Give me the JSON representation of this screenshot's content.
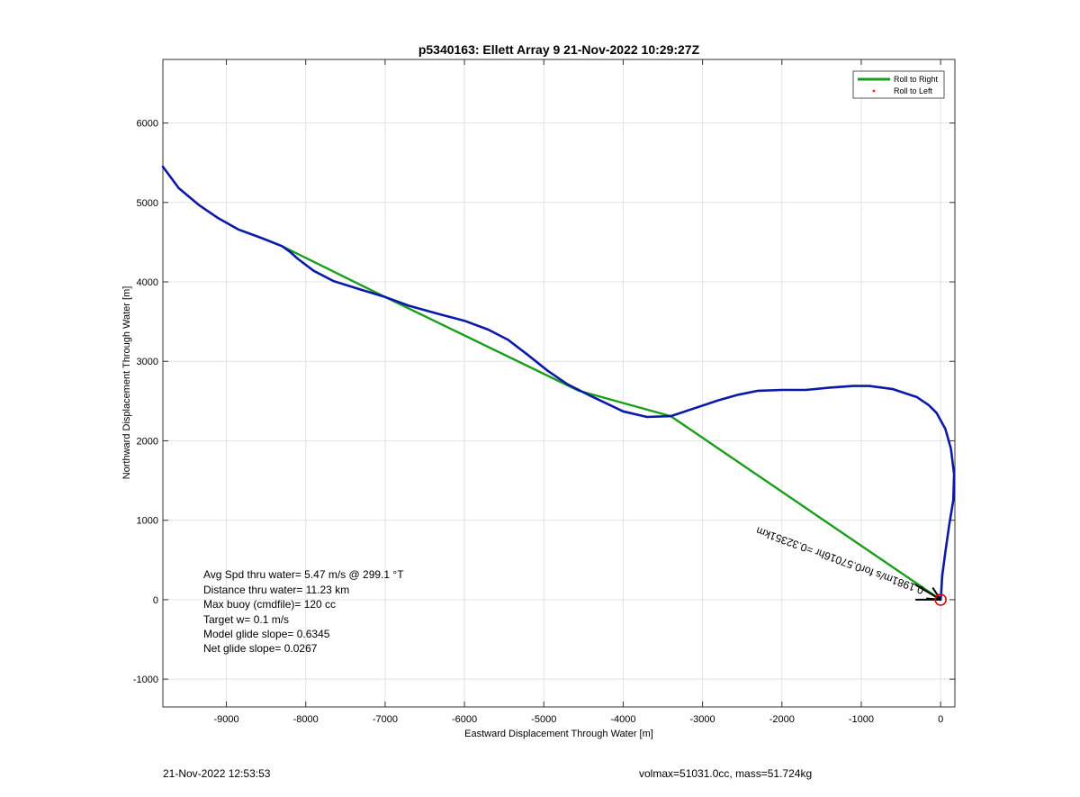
{
  "chart_data": {
    "type": "line",
    "title": "p5340163: Ellett Array 9 21-Nov-2022 10:29:27Z",
    "xlabel": "Eastward Displacement Through Water [m]",
    "ylabel": "Northward Displacement Through Water [m]",
    "xlim": [
      -9800,
      180
    ],
    "ylim": [
      -1350,
      6800
    ],
    "xticks": [
      -9000,
      -8000,
      -7000,
      -6000,
      -5000,
      -4000,
      -3000,
      -2000,
      -1000,
      0
    ],
    "yticks": [
      -1000,
      0,
      1000,
      2000,
      3000,
      4000,
      5000,
      6000
    ],
    "grid": true,
    "legend": {
      "position": "top-right",
      "entries": [
        {
          "label": "Roll to Right",
          "color": "#1a9e1a",
          "style": "line"
        },
        {
          "label": "Roll to Left",
          "color": "#ff2020",
          "style": "dot"
        }
      ]
    },
    "series": [
      {
        "color": "#0a1aa8",
        "points": [
          [
            -9800,
            5450
          ],
          [
            -9600,
            5180
          ],
          [
            -9350,
            4970
          ],
          [
            -9100,
            4800
          ],
          [
            -8850,
            4660
          ],
          [
            -8550,
            4550
          ],
          [
            -8300,
            4450
          ],
          [
            -8200,
            4380
          ],
          [
            -8100,
            4290
          ],
          [
            -7900,
            4140
          ],
          [
            -7650,
            4010
          ],
          [
            -7300,
            3900
          ],
          [
            -7000,
            3810
          ],
          [
            -6700,
            3700
          ],
          [
            -6300,
            3590
          ],
          [
            -6000,
            3510
          ],
          [
            -5700,
            3400
          ],
          [
            -5450,
            3270
          ],
          [
            -5200,
            3080
          ],
          [
            -4950,
            2880
          ],
          [
            -4700,
            2710
          ],
          [
            -4400,
            2560
          ],
          [
            -4000,
            2370
          ],
          [
            -3700,
            2300
          ],
          [
            -3400,
            2310
          ],
          [
            -3100,
            2410
          ],
          [
            -2800,
            2510
          ],
          [
            -2550,
            2580
          ],
          [
            -2300,
            2630
          ],
          [
            -2000,
            2640
          ],
          [
            -1700,
            2640
          ],
          [
            -1400,
            2670
          ],
          [
            -1100,
            2690
          ],
          [
            -900,
            2690
          ],
          [
            -600,
            2650
          ],
          [
            -300,
            2550
          ],
          [
            -150,
            2450
          ],
          [
            -50,
            2350
          ],
          [
            60,
            2150
          ],
          [
            130,
            1900
          ],
          [
            170,
            1580
          ],
          [
            160,
            1250
          ],
          [
            110,
            950
          ],
          [
            60,
            600
          ],
          [
            20,
            300
          ],
          [
            5,
            50
          ],
          [
            0,
            0
          ]
        ]
      },
      {
        "name": "Roll to Right",
        "color": "#1a9e1a",
        "points": [
          [
            -8300,
            4450
          ],
          [
            -7000,
            3810
          ],
          [
            -4560,
            2630
          ],
          [
            -3400,
            2310
          ],
          [
            0,
            0
          ]
        ]
      }
    ],
    "markers": [
      {
        "type": "circle",
        "x": 0,
        "y": 0,
        "color": "#e00000"
      }
    ],
    "arrow": {
      "x": 0,
      "y": 0,
      "dx": -320,
      "dy": 190,
      "color": "#000000"
    },
    "current_label": "0.1981m/s for0.57016hr =0.32351km",
    "annotations": [
      "Avg Spd thru water=  5.47 m/s @ 299.1 °T",
      "Distance thru water= 11.23 km",
      "Max buoy (cmdfile)= 120 cc",
      "Target w= 0.1 m/s",
      "Model glide slope= 0.6345",
      "Net glide slope= 0.0267"
    ]
  },
  "footer": {
    "left": "21-Nov-2022 12:53:53",
    "right": "volmax=51031.0cc, mass=51.724kg"
  }
}
